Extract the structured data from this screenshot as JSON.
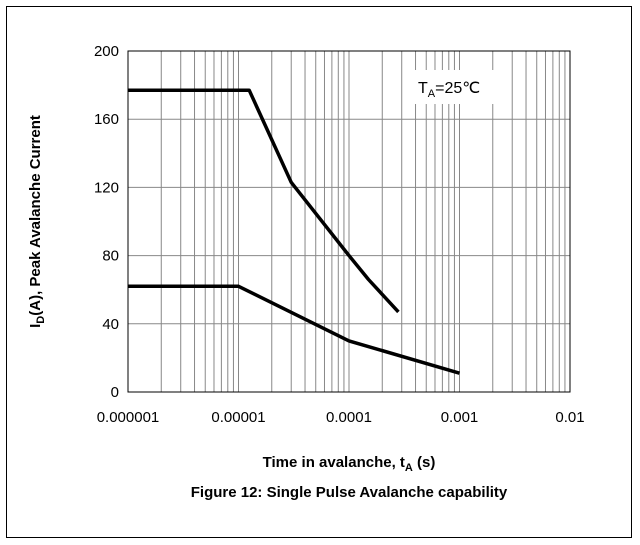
{
  "chart_data": {
    "type": "line",
    "xscale": "log",
    "xlim": [
      1e-06,
      0.01
    ],
    "ylim": [
      0,
      200
    ],
    "x_ticks": [
      "0.000001",
      "0.00001",
      "0.0001",
      "0.001",
      "0.01"
    ],
    "x_tick_values": [
      1e-06,
      1e-05,
      0.0001,
      0.001,
      0.01
    ],
    "y_ticks": [
      "0",
      "40",
      "80",
      "120",
      "160",
      "200"
    ],
    "y_tick_values": [
      0,
      40,
      80,
      120,
      160,
      200
    ],
    "xlabel": {
      "main": "Time in avalanche, t",
      "sub": "A",
      "unit": " (s)"
    },
    "ylabel": {
      "sym": "I",
      "sub": "D",
      "rest": "(A), Peak Avalanche Current"
    },
    "caption": "Figure 12: Single Pulse Avalanche capability",
    "annotation": {
      "main": "T",
      "sub": "A",
      "rest": "=25℃"
    },
    "grid": true,
    "series": [
      {
        "x": [
          1e-06,
          1.25e-05,
          3e-05,
          0.0001,
          0.00015,
          0.00028
        ],
        "y": [
          177,
          177,
          123,
          80,
          66,
          47
        ]
      },
      {
        "x": [
          1e-06,
          1e-05,
          0.0001,
          0.001
        ],
        "y": [
          62,
          62,
          30,
          11
        ]
      }
    ]
  }
}
